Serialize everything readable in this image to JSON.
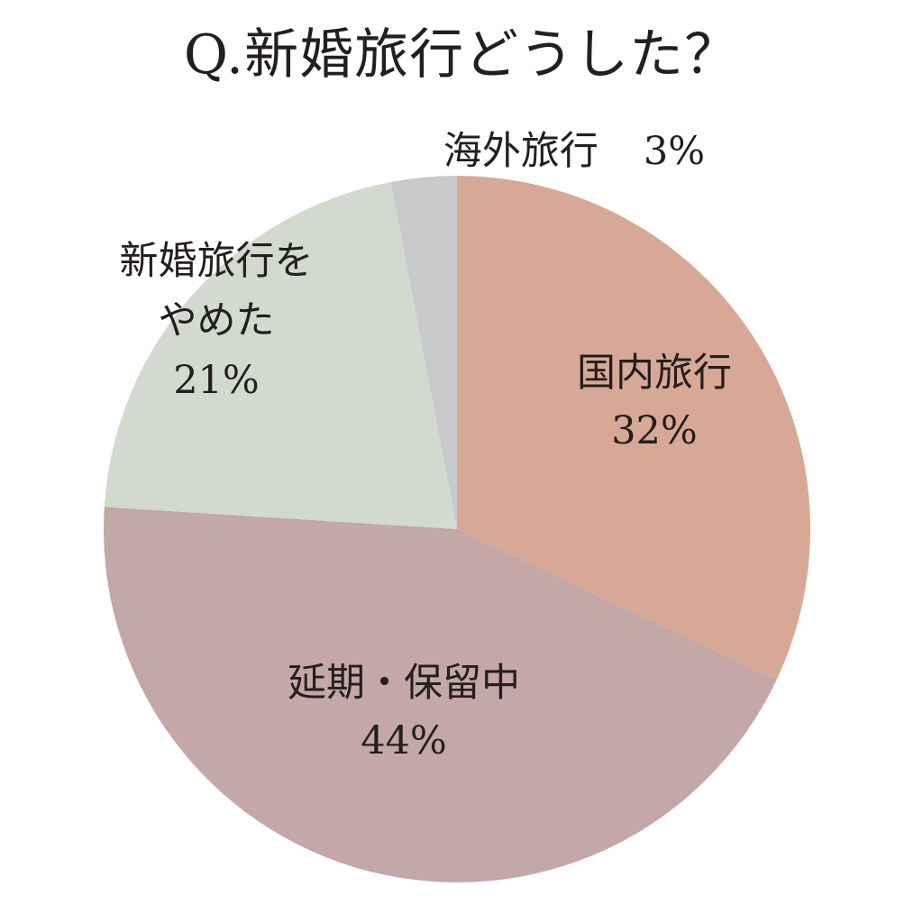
{
  "chart_data": {
    "type": "pie",
    "title": "Q.新婚旅行どうした？",
    "start": "top",
    "direction": "clockwise",
    "slices": [
      {
        "label": "国内旅行",
        "value_label": "32%",
        "value": 32,
        "color": "#d8a896"
      },
      {
        "label": "延期・保留中",
        "value_label": "44%",
        "value": 44,
        "color": "#c4a7a7"
      },
      {
        "label": "新婚旅行をやめた",
        "label_lines": [
          "新婚旅行を",
          "やめた"
        ],
        "value_label": "21%",
        "value": 21,
        "color": "#d2d9cf"
      },
      {
        "label": "海外旅行",
        "value_label": "3%",
        "value": 3,
        "color": "#c9c9cc"
      }
    ]
  }
}
